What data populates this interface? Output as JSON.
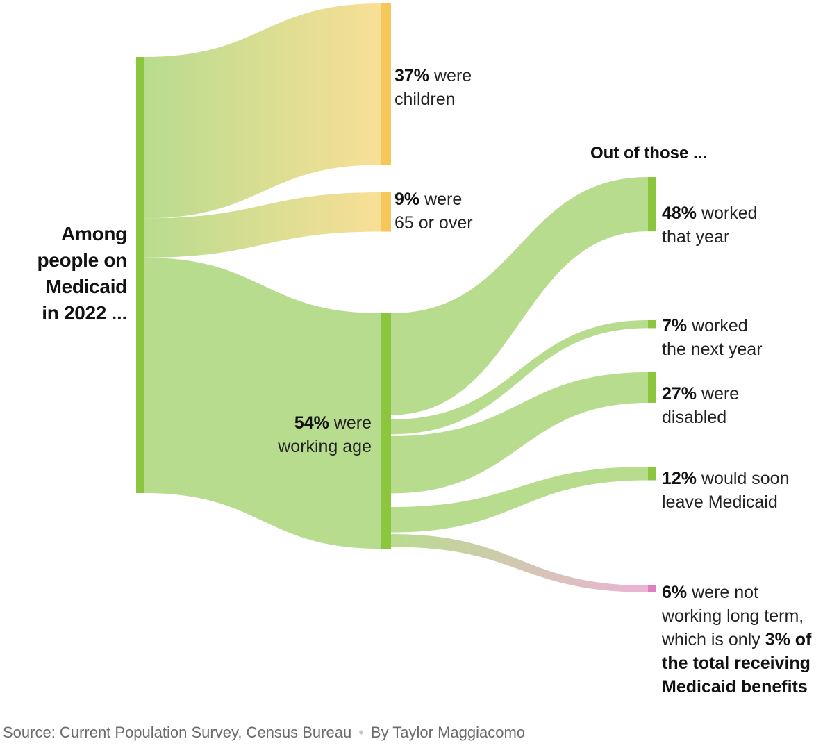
{
  "chart_data": {
    "type": "sankey",
    "root_label": [
      "Among",
      "people on",
      "Medicaid",
      "in 2022 ..."
    ],
    "subheading": "Out of those ...",
    "first_level": [
      {
        "id": "children",
        "value": 37,
        "pct": "37%",
        "text1": " were",
        "text2": "children"
      },
      {
        "id": "seniors",
        "value": 9,
        "pct": "9%",
        "text1": " were",
        "text2": "65 or over"
      },
      {
        "id": "working-age",
        "value": 54,
        "pct": "54%",
        "text1": " were",
        "text2": "working age"
      }
    ],
    "second_level": [
      {
        "id": "worked-that-year",
        "value": 48,
        "pct": "48%",
        "text1": " worked",
        "text2": "that year"
      },
      {
        "id": "worked-next-year",
        "value": 7,
        "pct": "7%",
        "text1": " worked",
        "text2": "the next year"
      },
      {
        "id": "disabled",
        "value": 27,
        "pct": "27%",
        "text1": " were",
        "text2": "disabled"
      },
      {
        "id": "leave-medicaid",
        "value": 12,
        "pct": "12%",
        "text1": " would soon",
        "text2": "leave Medicaid"
      },
      {
        "id": "not-working",
        "value": 6,
        "pct": "6%",
        "text1": " were not",
        "text2": "working long term,",
        "text3": "which is only ",
        "text3_bold": "3% of",
        "text4": "the total receiving",
        "text5": "Medicaid benefits"
      }
    ],
    "colors": {
      "green": "#8cc63f",
      "green_light": "#b8dc8e",
      "yellow": "#f6c85a",
      "yellow_light": "#f9df96",
      "pink": "#e07fc0",
      "pink_light": "#ecb3d6"
    }
  },
  "footer": {
    "source": "Source: Current Population Survey, Census Bureau",
    "separator": "•",
    "byline": "By Taylor Maggiacomo"
  }
}
